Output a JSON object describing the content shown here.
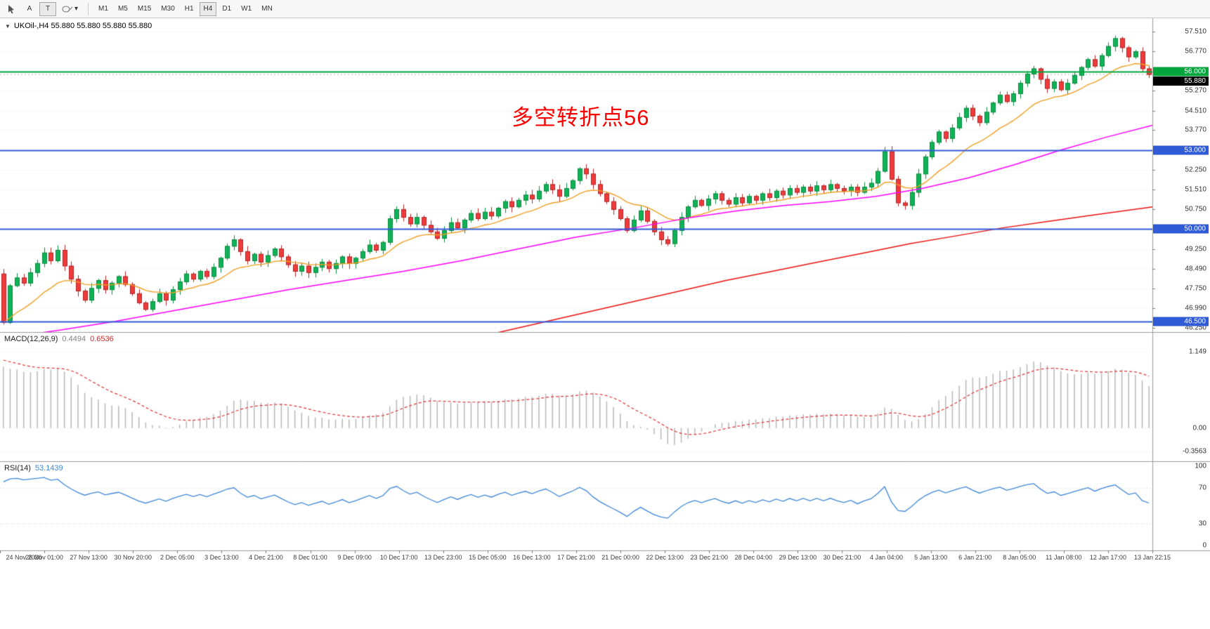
{
  "icons": {
    "symbol_dropdown": "▼",
    "shapes_caret": "▾"
  },
  "toolbar": {
    "tool_a": "A",
    "tool_t": "T",
    "timeframes": [
      "M1",
      "M5",
      "M15",
      "M30",
      "H1",
      "H4",
      "D1",
      "W1",
      "MN"
    ],
    "active_timeframe": "H4"
  },
  "chart": {
    "symbol_info": "UKOil-,H4 55.880 55.880 55.880 55.880",
    "annotation": "多空转折点56",
    "annotation_color": "#fa0000",
    "current_price": {
      "text": "55.880",
      "value": 55.88
    },
    "hlines": [
      {
        "value": 56.0,
        "label": "56.000",
        "color": "#00a53c",
        "width": 2
      },
      {
        "value": 53.0,
        "label": "53.000",
        "color": "#2f5bd7",
        "width": 2
      },
      {
        "value": 50.0,
        "label": "50.000",
        "color": "#2f5bd7",
        "width": 2
      },
      {
        "value": 46.5,
        "label": "46.500",
        "color": "#2f5bd7",
        "width": 2
      }
    ]
  },
  "price_scale": {
    "gridlines": [
      57.51,
      56.77,
      55.27,
      54.51,
      53.77,
      52.25,
      51.51,
      50.75,
      49.25,
      48.49,
      47.75,
      46.99,
      46.25
    ]
  },
  "macd": {
    "title": "MACD(12,26,9)",
    "value_main": "0.4494",
    "value_signal": "0.6536",
    "range": [
      -0.5,
      1.45
    ],
    "axis": [
      {
        "t": "1.149",
        "v": 1.149
      },
      {
        "t": "0.00",
        "v": 0
      },
      {
        "t": "-0.3563",
        "v": -0.3563
      }
    ]
  },
  "rsi": {
    "title": "RSI(14)",
    "value": "53.1439",
    "levels": [
      70,
      30
    ],
    "axis": [
      {
        "t": "100",
        "v": 100
      },
      {
        "t": "70",
        "v": 70
      },
      {
        "t": "30",
        "v": 30
      },
      {
        "t": "0",
        "v": 0
      }
    ]
  },
  "time_axis": [
    "24 Nov 2020",
    "26 Nov 01:00",
    "27 Nov 13:00",
    "30 Nov 20:00",
    "2 Dec 05:00",
    "3 Dec 13:00",
    "4 Dec 21:00",
    "8 Dec 01:00",
    "9 Dec 09:00",
    "10 Dec 17:00",
    "13 Dec 23:00",
    "15 Dec 05:00",
    "16 Dec 13:00",
    "17 Dec 21:00",
    "21 Dec 00:00",
    "22 Dec 13:00",
    "23 Dec 21:00",
    "28 Dec 04:00",
    "29 Dec 13:00",
    "30 Dec 21:00",
    "4 Jan 04:00",
    "5 Jan 13:00",
    "6 Jan 21:00",
    "8 Jan 05:00",
    "11 Jan 08:00",
    "12 Jan 17:00",
    "13 Jan 22:15"
  ],
  "colors": {
    "up": "#10b257",
    "up_border": "#0a8a3e",
    "down": "#ef3b3b",
    "down_border": "#b32424",
    "ma_fast": "#efa026",
    "ma_mid": "#ff00ff",
    "ma_slow": "#ee1111",
    "macd_bar": "#b8b8b8",
    "macd_signal": "#e03030",
    "rsi_line": "#3f87d8",
    "grid": "#e9e9e9",
    "separator": "#9a9a9a",
    "price_marker_bg": "#000000"
  },
  "chart_data": {
    "type": "candlestick",
    "symbol": "UKOil-",
    "timeframe": "H4",
    "y_range": [
      46.09,
      58.02
    ],
    "first_open": 48.3,
    "closes": [
      46.45,
      47.85,
      48.15,
      47.95,
      48.35,
      48.7,
      49.1,
      48.8,
      49.2,
      48.6,
      48.1,
      47.65,
      47.3,
      47.75,
      48.05,
      47.7,
      47.95,
      48.2,
      47.9,
      47.55,
      47.2,
      46.95,
      47.25,
      47.55,
      47.3,
      47.7,
      48.0,
      48.3,
      48.1,
      48.4,
      48.2,
      48.55,
      48.9,
      49.35,
      49.6,
      49.15,
      48.8,
      49.05,
      48.75,
      49.0,
      49.25,
      48.95,
      48.65,
      48.4,
      48.6,
      48.35,
      48.55,
      48.75,
      48.5,
      48.7,
      48.95,
      48.7,
      48.9,
      49.15,
      49.4,
      49.2,
      49.5,
      50.4,
      50.75,
      50.45,
      50.2,
      50.45,
      50.15,
      49.9,
      49.65,
      49.95,
      50.25,
      50.05,
      50.35,
      50.6,
      50.4,
      50.65,
      50.5,
      50.8,
      51.05,
      50.85,
      51.1,
      51.3,
      51.15,
      51.45,
      51.7,
      51.5,
      51.25,
      51.55,
      51.85,
      52.3,
      52.1,
      51.7,
      51.35,
      51.05,
      50.75,
      50.4,
      49.95,
      50.35,
      50.7,
      50.3,
      49.9,
      49.6,
      49.45,
      49.95,
      50.45,
      50.85,
      51.1,
      50.9,
      51.15,
      51.35,
      51.1,
      50.95,
      51.2,
      51.0,
      51.25,
      51.1,
      51.35,
      51.2,
      51.45,
      51.3,
      51.55,
      51.4,
      51.6,
      51.45,
      51.65,
      51.5,
      51.7,
      51.55,
      51.45,
      51.6,
      51.4,
      51.6,
      51.75,
      52.2,
      52.95,
      51.9,
      51.0,
      50.9,
      51.4,
      52.1,
      52.75,
      53.3,
      53.7,
      53.45,
      53.85,
      54.25,
      54.6,
      54.3,
      54.05,
      54.45,
      54.8,
      55.1,
      54.85,
      55.15,
      55.55,
      55.9,
      56.1,
      55.7,
      55.35,
      55.6,
      55.3,
      55.55,
      55.85,
      56.15,
      56.45,
      56.2,
      56.6,
      56.95,
      57.25,
      56.9,
      56.55,
      56.75,
      56.1,
      55.88
    ],
    "overlays": {
      "ma_mid_points": [
        [
          0,
          45.85
        ],
        [
          0.05,
          46.15
        ],
        [
          0.1,
          46.5
        ],
        [
          0.15,
          46.9
        ],
        [
          0.2,
          47.3
        ],
        [
          0.25,
          47.7
        ],
        [
          0.3,
          48.05
        ],
        [
          0.35,
          48.4
        ],
        [
          0.4,
          48.8
        ],
        [
          0.45,
          49.25
        ],
        [
          0.5,
          49.7
        ],
        [
          0.55,
          50.05
        ],
        [
          0.6,
          50.45
        ],
        [
          0.64,
          50.7
        ],
        [
          0.68,
          50.9
        ],
        [
          0.72,
          51.05
        ],
        [
          0.76,
          51.25
        ],
        [
          0.8,
          51.55
        ],
        [
          0.84,
          51.95
        ],
        [
          0.88,
          52.45
        ],
        [
          0.92,
          53.0
        ],
        [
          0.96,
          53.5
        ],
        [
          1.0,
          53.95
        ]
      ],
      "ma_slow_points": [
        [
          0.43,
          46.05
        ],
        [
          0.47,
          46.45
        ],
        [
          0.51,
          46.85
        ],
        [
          0.55,
          47.25
        ],
        [
          0.59,
          47.65
        ],
        [
          0.63,
          48.05
        ],
        [
          0.67,
          48.4
        ],
        [
          0.71,
          48.75
        ],
        [
          0.75,
          49.1
        ],
        [
          0.79,
          49.45
        ],
        [
          0.83,
          49.75
        ],
        [
          0.87,
          50.05
        ],
        [
          0.91,
          50.3
        ],
        [
          0.95,
          50.55
        ],
        [
          1.0,
          50.85
        ]
      ]
    }
  }
}
